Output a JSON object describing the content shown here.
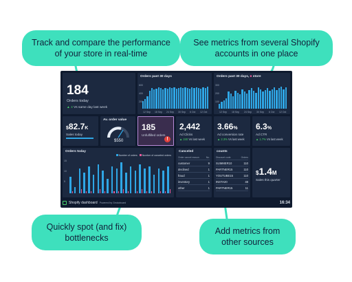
{
  "callouts": {
    "top_left": "Track and compare the performance of your store in real-time",
    "top_right": "See metrics from several Shopify accounts in one place",
    "bottom_left": "Quickly spot (and fix) bottlenecks",
    "bottom_right": "Add metrics from other sources"
  },
  "dashboard": {
    "orders_today": {
      "value": "184",
      "label": "Orders today",
      "delta": "4",
      "compare": "Vs same day last week"
    },
    "orders_30": {
      "title": "Orders past 30 days",
      "y_ticks": [
        "600",
        "400",
        "200"
      ],
      "x_ticks": [
        "12 Sep",
        "18 Sep",
        "24 Sep",
        "30 Sep",
        "6 Oct",
        "12 Oct"
      ],
      "values": [
        180,
        230,
        300,
        420,
        480,
        450,
        470,
        500,
        480,
        460,
        490,
        470,
        510,
        480,
        500,
        470,
        490,
        510,
        480,
        500,
        490,
        470,
        500,
        480,
        510,
        490,
        470,
        500,
        480,
        520
      ]
    },
    "orders_30_store": {
      "title": "Orders past 30 days,",
      "store": "store",
      "y_ticks": [
        "300",
        "200",
        "100"
      ],
      "x_ticks": [
        "12 Sep",
        "18 Sep",
        "24 Sep",
        "30 Sep",
        "6 Oct",
        "12 Oct"
      ],
      "values": [
        60,
        80,
        100,
        120,
        200,
        180,
        150,
        210,
        190,
        170,
        230,
        200,
        180,
        220,
        240,
        210,
        190,
        250,
        230,
        200,
        220,
        240,
        210,
        230,
        250,
        220,
        240,
        260,
        230,
        250
      ]
    },
    "sales": {
      "currency": "$",
      "value": "82.7",
      "unit": "K",
      "label": "Sales today"
    },
    "aov": {
      "title": "Av. order value",
      "value": "$550"
    },
    "unfulfilled": {
      "value": "185",
      "label": "Unfulfilled orders",
      "alert": "!"
    },
    "ad_clicks": {
      "value": "2,442",
      "label": "Ad Clicks",
      "delta": "240",
      "compare": "Vs last week"
    },
    "conversion": {
      "value": "3.66",
      "unit": "%",
      "label": "Ad conversion rate",
      "delta": "2.3%",
      "compare": "Vs last week"
    },
    "ctr": {
      "value": "6.3",
      "unit": "%",
      "label": "Ad CTR",
      "delta": "1.7%",
      "compare": "Vs last week"
    },
    "orders_today_chart": {
      "title": "Orders today",
      "legend_a": "Number of orders",
      "legend_b": "Number of canceled orders",
      "y_ticks": [
        "15",
        "10",
        "5"
      ],
      "values": [
        8,
        3,
        12,
        10,
        13,
        9,
        14,
        11,
        7,
        13,
        12,
        15,
        10,
        13,
        11,
        14,
        12,
        13,
        9,
        12,
        11,
        13
      ],
      "canceled": [
        1,
        0,
        2,
        1,
        1,
        0,
        2,
        1,
        0,
        1,
        1,
        2,
        1,
        0,
        1,
        2,
        1,
        1,
        0,
        1,
        1,
        2
      ]
    },
    "canceled": {
      "title": "Canceled",
      "col_a": "Order cancel reason",
      "col_b": "No.",
      "rows": [
        [
          "customer",
          "9"
        ],
        [
          "declined",
          "1"
        ],
        [
          "fraud",
          "1"
        ],
        [
          "inventory",
          "1"
        ],
        [
          "other",
          "1"
        ]
      ]
    },
    "discounts": {
      "title": "counts",
      "col_a": "Discount code",
      "col_b": "Orders",
      "rows": [
        [
          "SUMMER10",
          "110"
        ],
        [
          "PARTNER15",
          "110"
        ],
        [
          "YOUTUBE15",
          "110"
        ],
        [
          "INSTA20",
          "48"
        ],
        [
          "PARTNER15",
          "11"
        ]
      ]
    },
    "sales_quarter": {
      "currency": "$",
      "value": "1.4",
      "unit": "M",
      "label": "Sales this quarter"
    },
    "footer": {
      "title": "Shopify dashboard",
      "powered": "Powered by Geckoboard",
      "time": "16:34"
    }
  },
  "colors": {
    "accent": "#3ee0bd",
    "bar": "#2fa7e6",
    "positive": "#48d26a",
    "alert": "#e2413c",
    "canceled": "#e85a9b"
  }
}
